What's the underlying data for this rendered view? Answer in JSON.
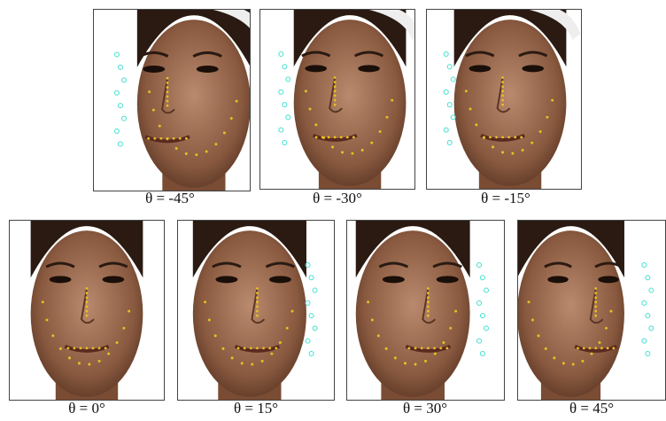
{
  "panels": [
    {
      "caption": "θ = -45°"
    },
    {
      "caption": "θ = -30°"
    },
    {
      "caption": "θ = -15°"
    },
    {
      "caption": "θ = 0°"
    },
    {
      "caption": "θ = 15°"
    },
    {
      "caption": "θ = 30°"
    },
    {
      "caption": "θ = 45°"
    }
  ]
}
